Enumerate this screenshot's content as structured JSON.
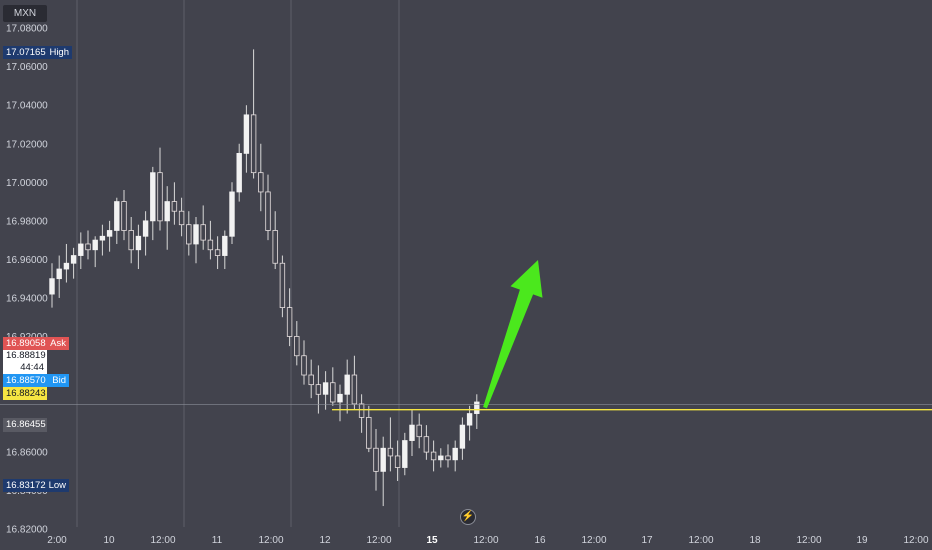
{
  "symbol": "MXN",
  "price_axis": {
    "ticks": [
      "17.08000",
      "17.06000",
      "17.04000",
      "17.02000",
      "17.00000",
      "16.98000",
      "16.96000",
      "16.94000",
      "16.92000",
      "16.86000",
      "16.84000",
      "16.82000"
    ],
    "range": [
      16.8092,
      17.0946
    ]
  },
  "tags": {
    "high": {
      "value": "17.07165",
      "label": "High",
      "color": "#1e3a6e"
    },
    "ask": {
      "value": "16.89058",
      "label": "Ask",
      "color": "#e05454"
    },
    "countdown_price": "16.88819",
    "countdown": "44:44",
    "bid": {
      "value": "16.88570",
      "label": "Bid",
      "color": "#2196f3"
    },
    "current": {
      "value": "16.88243",
      "color": "#f5e542"
    },
    "prev": {
      "value": "16.86455"
    },
    "low": {
      "value": "16.83172",
      "label": "Low",
      "color": "#1e3a6e"
    }
  },
  "time_axis": {
    "labels": [
      {
        "text": "2:00",
        "bold": false
      },
      {
        "text": "10",
        "bold": false
      },
      {
        "text": "12:00",
        "bold": false
      },
      {
        "text": "11",
        "bold": false
      },
      {
        "text": "12:00",
        "bold": false
      },
      {
        "text": "12",
        "bold": false
      },
      {
        "text": "12:00",
        "bold": false
      },
      {
        "text": "15",
        "bold": true
      },
      {
        "text": "12:00",
        "bold": false
      },
      {
        "text": "16",
        "bold": false
      },
      {
        "text": "12:00",
        "bold": false
      },
      {
        "text": "17",
        "bold": false
      },
      {
        "text": "12:00",
        "bold": false
      },
      {
        "text": "18",
        "bold": false
      },
      {
        "text": "12:00",
        "bold": false
      },
      {
        "text": "19",
        "bold": false
      },
      {
        "text": "12:00",
        "bold": false
      }
    ]
  },
  "colors": {
    "background": "#42434d",
    "up": "#f2f2f2",
    "down": "#e8e0e0",
    "wick": "#d9d9d9",
    "horizontal_line": "#f5e542",
    "arrow": "#4be81d",
    "crosshair": "#8a8d97"
  },
  "chart_data": {
    "type": "candlestick",
    "title": "",
    "ylim": [
      16.8092,
      17.0946
    ],
    "support_line": 16.882,
    "candles": [
      [
        16.942,
        16.958,
        16.935,
        16.95
      ],
      [
        16.95,
        16.962,
        16.94,
        16.955
      ],
      [
        16.955,
        16.968,
        16.948,
        16.958
      ],
      [
        16.958,
        16.966,
        16.95,
        16.962
      ],
      [
        16.962,
        16.974,
        16.955,
        16.968
      ],
      [
        16.968,
        16.975,
        16.96,
        16.965
      ],
      [
        16.965,
        16.972,
        16.956,
        16.97
      ],
      [
        16.97,
        16.978,
        16.962,
        16.972
      ],
      [
        16.972,
        16.98,
        16.964,
        16.975
      ],
      [
        16.975,
        16.992,
        16.968,
        16.99
      ],
      [
        16.99,
        16.996,
        16.97,
        16.975
      ],
      [
        16.975,
        16.982,
        16.958,
        16.965
      ],
      [
        16.965,
        16.978,
        16.955,
        16.972
      ],
      [
        16.972,
        16.985,
        16.962,
        16.98
      ],
      [
        16.98,
        17.008,
        16.97,
        17.005
      ],
      [
        17.005,
        17.018,
        16.975,
        16.98
      ],
      [
        16.98,
        16.998,
        16.965,
        16.99
      ],
      [
        16.99,
        17.0,
        16.978,
        16.985
      ],
      [
        16.985,
        16.992,
        16.972,
        16.978
      ],
      [
        16.978,
        16.985,
        16.962,
        16.968
      ],
      [
        16.968,
        16.982,
        16.958,
        16.978
      ],
      [
        16.978,
        16.988,
        16.965,
        16.97
      ],
      [
        16.97,
        16.98,
        16.96,
        16.965
      ],
      [
        16.965,
        16.972,
        16.955,
        16.962
      ],
      [
        16.962,
        16.975,
        16.955,
        16.972
      ],
      [
        16.972,
        17.0,
        16.968,
        16.995
      ],
      [
        16.995,
        17.02,
        16.99,
        17.015
      ],
      [
        17.015,
        17.04,
        17.005,
        17.035
      ],
      [
        17.035,
        17.069,
        17.002,
        17.005
      ],
      [
        17.005,
        17.02,
        16.985,
        16.995
      ],
      [
        16.995,
        17.004,
        16.97,
        16.975
      ],
      [
        16.975,
        16.985,
        16.955,
        16.958
      ],
      [
        16.958,
        16.962,
        16.93,
        16.935
      ],
      [
        16.935,
        16.945,
        16.915,
        16.92
      ],
      [
        16.92,
        16.928,
        16.905,
        16.91
      ],
      [
        16.91,
        16.918,
        16.895,
        16.9
      ],
      [
        16.9,
        16.908,
        16.888,
        16.895
      ],
      [
        16.895,
        16.905,
        16.88,
        16.89
      ],
      [
        16.89,
        16.902,
        16.882,
        16.896
      ],
      [
        16.896,
        16.904,
        16.884,
        16.886
      ],
      [
        16.886,
        16.895,
        16.876,
        16.89
      ],
      [
        16.89,
        16.908,
        16.88,
        16.9
      ],
      [
        16.9,
        16.91,
        16.882,
        16.885
      ],
      [
        16.885,
        16.89,
        16.87,
        16.878
      ],
      [
        16.878,
        16.884,
        16.86,
        16.862
      ],
      [
        16.862,
        16.872,
        16.84,
        16.85
      ],
      [
        16.85,
        16.868,
        16.832,
        16.862
      ],
      [
        16.862,
        16.878,
        16.85,
        16.858
      ],
      [
        16.858,
        16.866,
        16.845,
        16.852
      ],
      [
        16.852,
        16.87,
        16.848,
        16.866
      ],
      [
        16.866,
        16.882,
        16.858,
        16.874
      ],
      [
        16.874,
        16.88,
        16.862,
        16.868
      ],
      [
        16.868,
        16.874,
        16.856,
        16.86
      ],
      [
        16.86,
        16.866,
        16.85,
        16.856
      ],
      [
        16.856,
        16.862,
        16.852,
        16.858
      ],
      [
        16.858,
        16.864,
        16.852,
        16.856
      ],
      [
        16.856,
        16.866,
        16.85,
        16.862
      ],
      [
        16.862,
        16.878,
        16.856,
        16.874
      ],
      [
        16.874,
        16.884,
        16.866,
        16.88
      ],
      [
        16.88,
        16.89,
        16.872,
        16.886
      ]
    ]
  }
}
